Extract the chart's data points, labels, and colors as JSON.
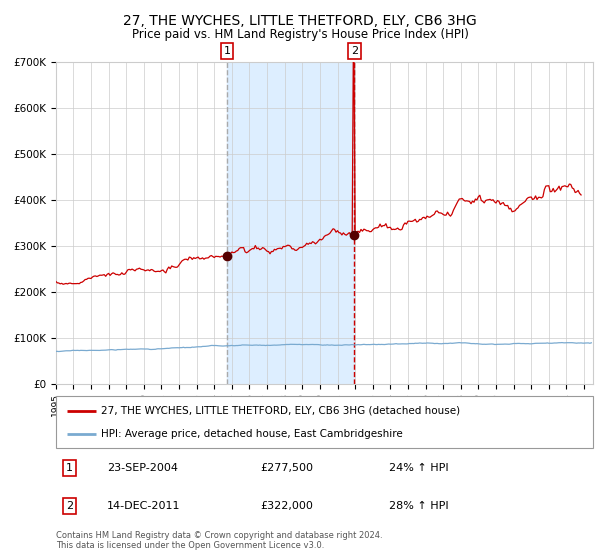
{
  "title": "27, THE WYCHES, LITTLE THETFORD, ELY, CB6 3HG",
  "subtitle": "Price paid vs. HM Land Registry's House Price Index (HPI)",
  "legend_line1": "27, THE WYCHES, LITTLE THETFORD, ELY, CB6 3HG (detached house)",
  "legend_line2": "HPI: Average price, detached house, East Cambridgeshire",
  "sale1_date": "23-SEP-2004",
  "sale1_price": "£277,500",
  "sale1_pct": "24% ↑ HPI",
  "sale2_date": "14-DEC-2011",
  "sale2_price": "£322,000",
  "sale2_pct": "28% ↑ HPI",
  "footnote": "Contains HM Land Registry data © Crown copyright and database right 2024.\nThis data is licensed under the Open Government Licence v3.0.",
  "sale1_year": 2004.72,
  "sale2_year": 2011.95,
  "sale1_price_val": 277500,
  "sale2_price_val": 322000,
  "hpi_color": "#7aaad0",
  "price_color": "#cc0000",
  "sale1_vline_color": "#aaaaaa",
  "sale2_vline_color": "#cc0000",
  "shade_color": "#ddeeff",
  "grid_color": "#cccccc",
  "bg_color": "#ffffff",
  "ylim": [
    0,
    700000
  ],
  "xlim_start": 1995.0,
  "xlim_end": 2025.5
}
